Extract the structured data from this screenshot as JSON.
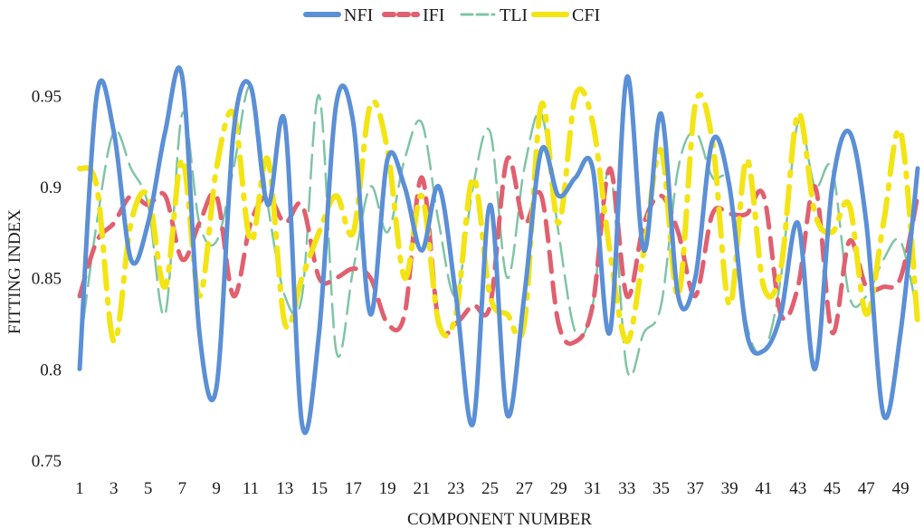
{
  "chart_data": {
    "type": "line",
    "title": "",
    "xlabel": "COMPONENT NUMBER",
    "ylabel": "FITTING INDEX",
    "x": [
      1,
      2,
      3,
      4,
      5,
      6,
      7,
      8,
      9,
      10,
      11,
      12,
      13,
      14,
      15,
      16,
      17,
      18,
      19,
      20,
      21,
      22,
      23,
      24,
      25,
      26,
      27,
      28,
      29,
      30,
      31,
      32,
      33,
      34,
      35,
      36,
      37,
      38,
      39,
      40,
      41,
      42,
      43,
      44,
      45,
      46,
      47,
      48,
      49,
      50
    ],
    "x_tick_labels": [
      "1",
      "3",
      "5",
      "7",
      "9",
      "11",
      "13",
      "15",
      "17",
      "19",
      "21",
      "23",
      "25",
      "27",
      "29",
      "31",
      "33",
      "35",
      "37",
      "39",
      "41",
      "43",
      "45",
      "47",
      "49"
    ],
    "y_tick_labels": [
      "0.75",
      "0.8",
      "0.85",
      "0.9",
      "0.95"
    ],
    "ylim": [
      0.75,
      0.975
    ],
    "grid": false,
    "legend_position": "top",
    "series": [
      {
        "name": "NFI",
        "color": "#5b8fd6",
        "style": "solid",
        "values": [
          0.8,
          0.95,
          0.93,
          0.86,
          0.88,
          0.93,
          0.96,
          0.82,
          0.79,
          0.93,
          0.955,
          0.89,
          0.935,
          0.77,
          0.82,
          0.945,
          0.935,
          0.83,
          0.915,
          0.9,
          0.865,
          0.9,
          0.84,
          0.77,
          0.89,
          0.775,
          0.84,
          0.92,
          0.895,
          0.905,
          0.91,
          0.82,
          0.96,
          0.865,
          0.94,
          0.84,
          0.85,
          0.925,
          0.9,
          0.82,
          0.81,
          0.83,
          0.88,
          0.8,
          0.9,
          0.93,
          0.88,
          0.775,
          0.82,
          0.91
        ]
      },
      {
        "name": "IFI",
        "color": "#e06070",
        "style": "dash",
        "values": [
          0.84,
          0.87,
          0.88,
          0.895,
          0.89,
          0.895,
          0.86,
          0.88,
          0.895,
          0.84,
          0.88,
          0.895,
          0.88,
          0.89,
          0.85,
          0.85,
          0.855,
          0.85,
          0.825,
          0.83,
          0.905,
          0.825,
          0.825,
          0.835,
          0.835,
          0.915,
          0.88,
          0.895,
          0.825,
          0.815,
          0.835,
          0.91,
          0.84,
          0.88,
          0.895,
          0.875,
          0.84,
          0.885,
          0.885,
          0.885,
          0.895,
          0.83,
          0.845,
          0.9,
          0.82,
          0.87,
          0.845,
          0.845,
          0.85,
          0.895
        ]
      },
      {
        "name": "TLI",
        "color": "#7fc4a6",
        "style": "dash",
        "values": [
          0.81,
          0.88,
          0.93,
          0.91,
          0.89,
          0.83,
          0.94,
          0.88,
          0.87,
          0.91,
          0.955,
          0.89,
          0.84,
          0.84,
          0.95,
          0.81,
          0.855,
          0.9,
          0.875,
          0.915,
          0.935,
          0.88,
          0.84,
          0.9,
          0.93,
          0.85,
          0.91,
          0.94,
          0.875,
          0.82,
          0.835,
          0.91,
          0.8,
          0.82,
          0.835,
          0.91,
          0.93,
          0.905,
          0.9,
          0.825,
          0.81,
          0.85,
          0.935,
          0.9,
          0.91,
          0.84,
          0.84,
          0.86,
          0.87,
          0.83
        ]
      },
      {
        "name": "CFI",
        "color": "#f3e414",
        "style": "dash",
        "values": [
          0.91,
          0.9,
          0.815,
          0.88,
          0.895,
          0.845,
          0.915,
          0.84,
          0.91,
          0.94,
          0.87,
          0.915,
          0.825,
          0.85,
          0.875,
          0.895,
          0.875,
          0.945,
          0.92,
          0.85,
          0.895,
          0.825,
          0.83,
          0.905,
          0.84,
          0.83,
          0.825,
          0.945,
          0.88,
          0.95,
          0.935,
          0.865,
          0.815,
          0.865,
          0.92,
          0.84,
          0.945,
          0.925,
          0.835,
          0.915,
          0.845,
          0.855,
          0.94,
          0.885,
          0.875,
          0.89,
          0.83,
          0.88,
          0.93,
          0.825
        ]
      }
    ]
  }
}
